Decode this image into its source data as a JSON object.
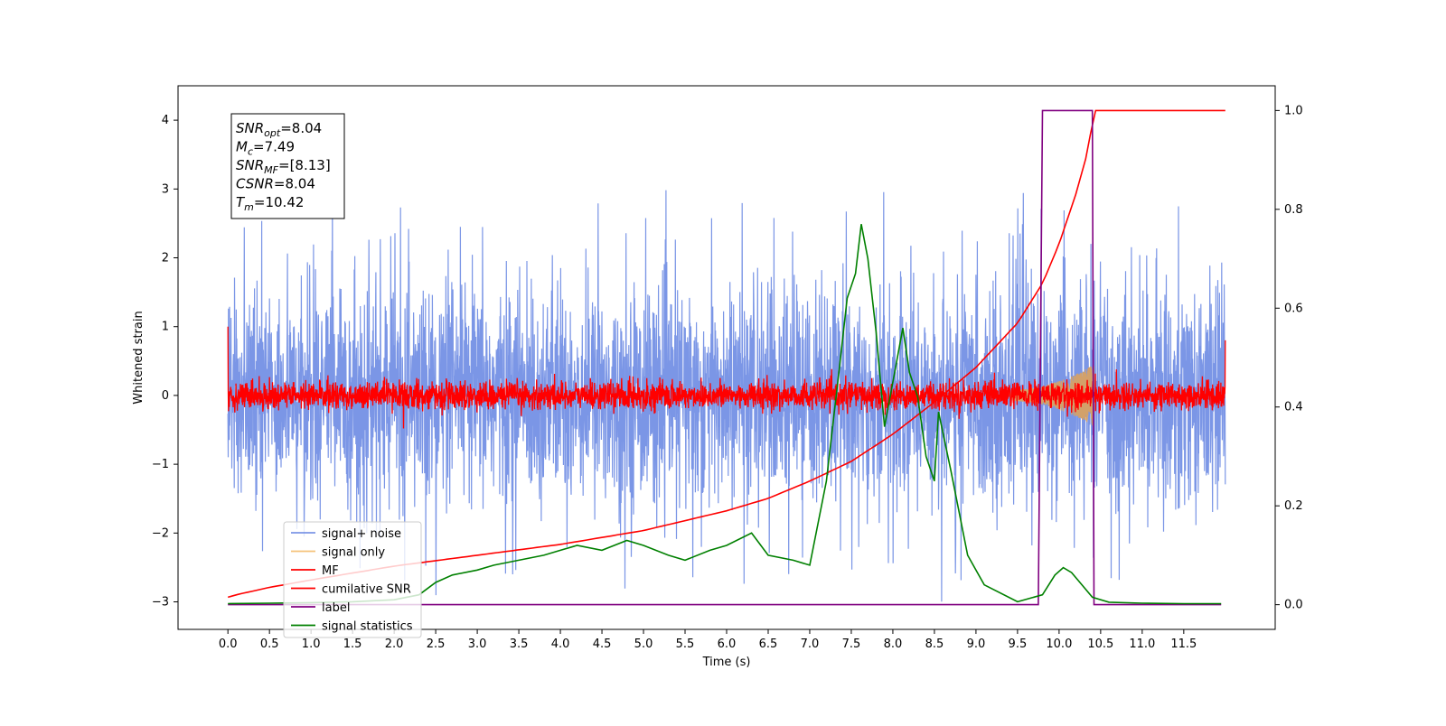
{
  "chart_data": {
    "type": "line",
    "xlabel": "Time (s)",
    "ylabel": "Whitened strain",
    "xlim": [
      -0.6,
      12.6
    ],
    "ylim": [
      -3.4,
      4.5
    ],
    "y2lim": [
      -0.05,
      1.05
    ],
    "x_ticks": [
      0.0,
      0.5,
      1.0,
      1.5,
      2.0,
      2.5,
      3.0,
      3.5,
      4.0,
      4.5,
      5.0,
      5.5,
      6.0,
      6.5,
      7.0,
      7.5,
      8.0,
      8.5,
      9.0,
      9.5,
      10.0,
      10.5,
      11.0,
      11.5
    ],
    "x_tick_labels": [
      "0.0",
      "0.5",
      "1.0",
      "1.5",
      "2.0",
      "2.5",
      "3.0",
      "3.5",
      "4.0",
      "4.5",
      "5.0",
      "5.5",
      "6.0",
      "6.5",
      "7.0",
      "7.5",
      "8.0",
      "8.5",
      "9.0",
      "9.5",
      "10.0",
      "10.5",
      "11.0",
      "11.5"
    ],
    "y_ticks": [
      -3,
      -2,
      -1,
      0,
      1,
      2,
      3,
      4
    ],
    "y_tick_labels": [
      "−3",
      "−2",
      "−1",
      "0",
      "1",
      "2",
      "3",
      "4"
    ],
    "y2_ticks": [
      0.0,
      0.2,
      0.4,
      0.6,
      0.8,
      1.0
    ],
    "y2_tick_labels": [
      "0.0",
      "0.2",
      "0.4",
      "0.6",
      "0.8",
      "1.0"
    ],
    "legend_position": "lower-left",
    "grid": false,
    "annotation": {
      "lines": [
        {
          "var": "SNR",
          "sub": "opt",
          "rest": "=8.04"
        },
        {
          "var": "M",
          "sub": "c",
          "rest": "=7.49"
        },
        {
          "var": "SNR",
          "sub": "MF",
          "rest": "=[8.13]"
        },
        {
          "var": "CSNR",
          "sub": "",
          "rest": "=8.04"
        },
        {
          "var": "T",
          "sub": "m",
          "rest": "=10.42"
        }
      ]
    },
    "series": [
      {
        "name": "signal+ noise",
        "axis": "left",
        "color": "#7b96e6",
        "style": "noise",
        "x_range": [
          0.0,
          12.0
        ],
        "envelope_sigma": 0.78,
        "spike_range": [
          -3.0,
          3.15
        ]
      },
      {
        "name": "signal only",
        "axis": "left",
        "color": "#f5c27a",
        "style": "chirp",
        "x_range": [
          9.4,
          10.42
        ],
        "amplitude_range": [
          0.08,
          0.45
        ]
      },
      {
        "name": "MF",
        "axis": "left",
        "color": "#ff0000",
        "style": "noise",
        "x_range": [
          0.0,
          12.0
        ],
        "envelope_sigma": 0.1,
        "start_value": 1.0,
        "end_value": 0.8
      },
      {
        "name": "cumilative SNR",
        "axis": "right",
        "color": "#ff0000",
        "x": [
          0.0,
          0.1,
          0.5,
          1.0,
          2.0,
          3.0,
          4.0,
          5.0,
          6.0,
          6.5,
          7.0,
          7.5,
          8.0,
          8.5,
          9.0,
          9.5,
          9.8,
          10.0,
          10.2,
          10.35,
          10.42,
          12.0
        ],
        "values": [
          0.015,
          0.02,
          0.035,
          0.05,
          0.078,
          0.1,
          0.122,
          0.15,
          0.19,
          0.215,
          0.25,
          0.29,
          0.345,
          0.41,
          0.48,
          0.57,
          0.65,
          0.73,
          0.83,
          0.92,
          1.0,
          1.0
        ]
      },
      {
        "name": "label",
        "axis": "right",
        "color": "#800080",
        "x": [
          0.0,
          9.75,
          9.8,
          10.4,
          10.42,
          11.95
        ],
        "values": [
          0.0,
          0.0,
          1.0,
          1.0,
          0.0,
          0.0
        ]
      },
      {
        "name": "signal statistics",
        "axis": "right",
        "color": "#008000",
        "x": [
          0.0,
          0.5,
          1.0,
          1.5,
          2.0,
          2.3,
          2.5,
          2.7,
          3.0,
          3.2,
          3.5,
          3.8,
          4.0,
          4.2,
          4.5,
          4.8,
          5.0,
          5.3,
          5.5,
          5.8,
          6.0,
          6.3,
          6.5,
          6.8,
          7.0,
          7.2,
          7.35,
          7.45,
          7.55,
          7.62,
          7.7,
          7.8,
          7.9,
          8.0,
          8.12,
          8.2,
          8.3,
          8.4,
          8.5,
          8.55,
          8.7,
          8.9,
          9.1,
          9.5,
          9.8,
          9.95,
          10.05,
          10.15,
          10.25,
          10.4,
          10.6,
          11.0,
          11.5,
          11.95
        ],
        "values": [
          0.002,
          0.003,
          0.004,
          0.006,
          0.01,
          0.02,
          0.045,
          0.06,
          0.07,
          0.08,
          0.09,
          0.1,
          0.11,
          0.12,
          0.11,
          0.13,
          0.12,
          0.1,
          0.09,
          0.11,
          0.12,
          0.145,
          0.1,
          0.09,
          0.08,
          0.25,
          0.47,
          0.62,
          0.67,
          0.77,
          0.7,
          0.55,
          0.36,
          0.45,
          0.56,
          0.47,
          0.42,
          0.3,
          0.25,
          0.39,
          0.27,
          0.1,
          0.04,
          0.006,
          0.02,
          0.06,
          0.075,
          0.065,
          0.045,
          0.015,
          0.005,
          0.003,
          0.002,
          0.002
        ]
      }
    ]
  }
}
